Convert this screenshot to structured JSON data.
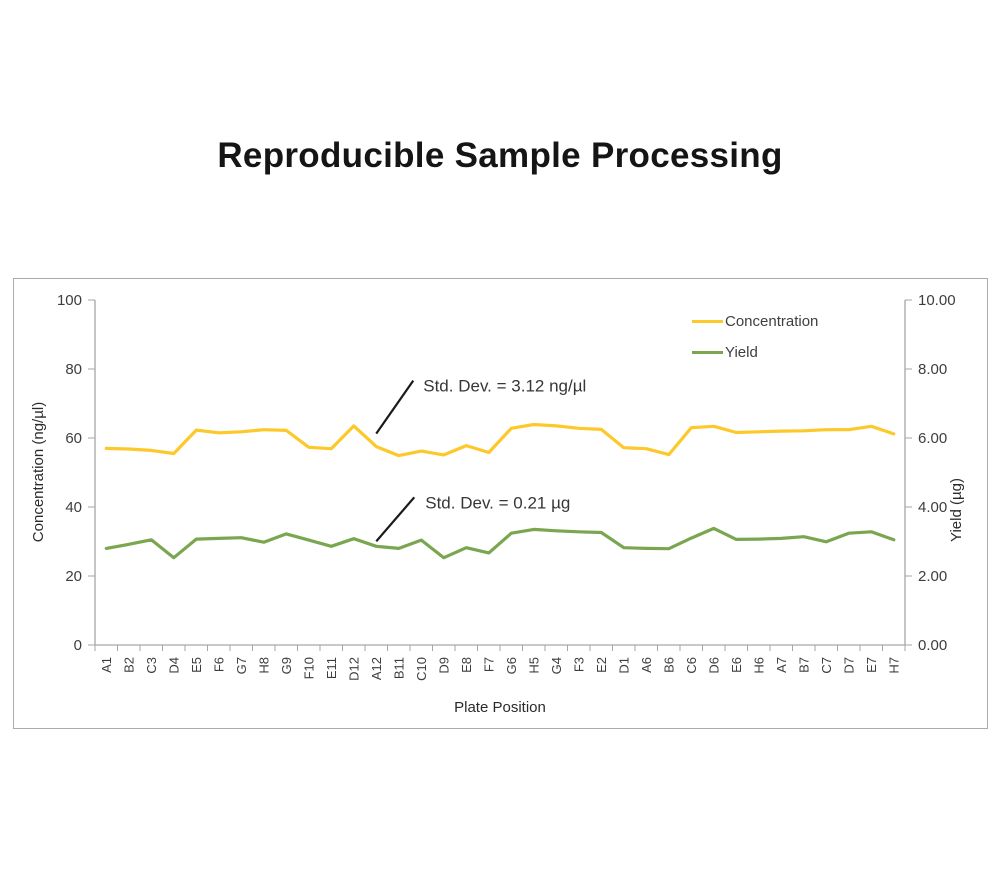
{
  "page": {
    "title": "Reproducible Sample Processing"
  },
  "chart_data": {
    "type": "line",
    "title": "Reproducible Sample Processing",
    "categories": [
      "A1",
      "B2",
      "C3",
      "D4",
      "E5",
      "F6",
      "G7",
      "H8",
      "G9",
      "F10",
      "E11",
      "D12",
      "A12",
      "B11",
      "C10",
      "D9",
      "E8",
      "F7",
      "G6",
      "H5",
      "G4",
      "F3",
      "E2",
      "D1",
      "A6",
      "B6",
      "C6",
      "D6",
      "E6",
      "H6",
      "A7",
      "B7",
      "C7",
      "D7",
      "E7",
      "H7"
    ],
    "series": [
      {
        "name": "Concentration",
        "axis": "left",
        "color": "#FDC82A",
        "values": [
          57.0,
          56.8,
          56.4,
          55.5,
          62.3,
          61.5,
          61.8,
          62.4,
          62.2,
          57.3,
          56.9,
          63.5,
          57.5,
          54.9,
          56.2,
          55.1,
          57.8,
          55.8,
          62.8,
          63.9,
          63.5,
          62.8,
          62.5,
          57.2,
          56.9,
          55.2,
          63.0,
          63.4,
          61.6,
          61.8,
          62.0,
          62.1,
          62.4,
          62.4,
          63.4,
          61.2
        ]
      },
      {
        "name": "Yield",
        "axis": "right",
        "color": "#7AA650",
        "values": [
          2.8,
          2.92,
          3.05,
          2.53,
          3.07,
          3.09,
          3.11,
          2.98,
          3.22,
          3.04,
          2.86,
          3.08,
          2.86,
          2.8,
          3.04,
          2.53,
          2.82,
          2.67,
          3.24,
          3.35,
          3.31,
          3.28,
          3.26,
          2.82,
          2.8,
          2.79,
          3.1,
          3.38,
          3.06,
          3.07,
          3.09,
          3.14,
          2.99,
          3.24,
          3.28,
          3.05
        ]
      }
    ],
    "axes": {
      "left": {
        "label": "Concentration (ng/µl)",
        "min": 0,
        "max": 100,
        "step": 20,
        "decimals": 0
      },
      "right": {
        "label": "Yield (µg)",
        "min": 0,
        "max": 10,
        "step": 2,
        "decimals": 2
      },
      "x": {
        "label": "Plate Position"
      }
    },
    "grid": false,
    "legend_position": "top-right",
    "annotations": [
      {
        "text": "Std. Dev. = 3.12 ng/µl",
        "series": "Concentration",
        "point": "A12"
      },
      {
        "text": "Std. Dev. = 0.21 µg",
        "series": "Yield",
        "point": "A12"
      }
    ]
  }
}
